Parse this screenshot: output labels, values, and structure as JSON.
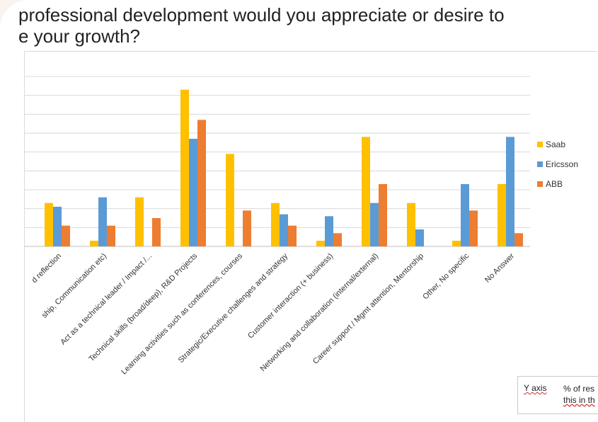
{
  "title": {
    "line1": "professional development would you appreciate or desire to",
    "line2": "e your growth?"
  },
  "note": {
    "label": "Y axis",
    "text_line1": "% of res",
    "text_line2": "this in th"
  },
  "colors": {
    "Saab": "#FFC000",
    "Ericsson": "#5B9BD5",
    "ABB": "#ED7D31",
    "grid": "#d9d9d9",
    "axis_text": "#333333"
  },
  "chart_data": {
    "type": "bar",
    "categories": [
      "d reflection",
      "ship, Communication etc)",
      "Act as a technical leader / Impact /...",
      "Technical skills (broad/deep), R&D Projects",
      "Learning activities such as conferences, courses",
      "Strategic/Executive challenges and strategy",
      "Customer interaction (+ business)",
      "Networking and collaboration (internal/external)",
      "Career support / Mgmt attention, Mentorship",
      "Other, No specific",
      "No Answer"
    ],
    "series": [
      {
        "name": "Saab",
        "values": [
          2.3,
          0.3,
          2.6,
          8.3,
          4.9,
          2.3,
          0.3,
          5.8,
          2.3,
          0.3,
          3.3
        ]
      },
      {
        "name": "Ericsson",
        "values": [
          2.1,
          2.6,
          0,
          5.7,
          0,
          1.7,
          1.6,
          2.3,
          0.9,
          3.3,
          5.8
        ]
      },
      {
        "name": "ABB",
        "values": [
          1.1,
          1.1,
          1.5,
          6.7,
          1.9,
          1.1,
          0.7,
          3.3,
          0,
          1.9,
          0.7
        ]
      }
    ],
    "ylim": [
      0,
      9
    ],
    "grid": true,
    "legend": "right"
  }
}
